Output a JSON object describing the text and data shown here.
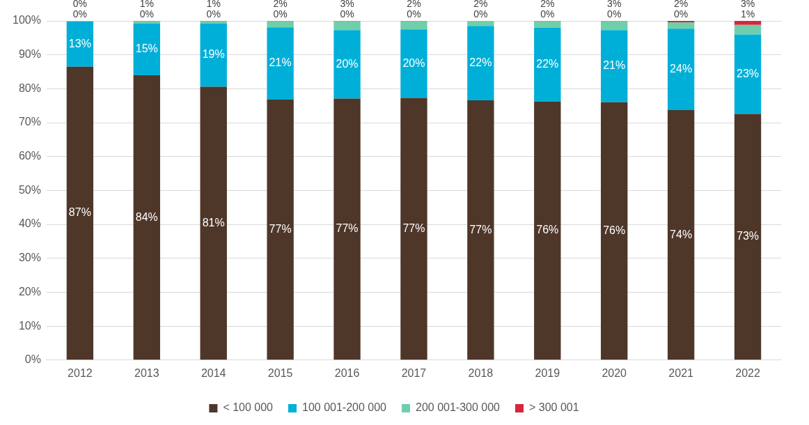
{
  "chart_data": {
    "type": "bar",
    "stacked": true,
    "categories": [
      "2012",
      "2013",
      "2014",
      "2015",
      "2016",
      "2017",
      "2018",
      "2019",
      "2020",
      "2021",
      "2022"
    ],
    "series": [
      {
        "name": "< 100 000",
        "color": "#4e3629",
        "values": [
          86.5,
          84.0,
          80.6,
          76.8,
          77.1,
          77.3,
          76.6,
          76.2,
          76.0,
          73.7,
          72.6
        ],
        "value_labels": [
          "87%",
          "84%",
          "81%",
          "77%",
          "77%",
          "77%",
          "77%",
          "76%",
          "76%",
          "74%",
          "73%"
        ]
      },
      {
        "name": "100 001-200 000",
        "color": "#00afd7",
        "values": [
          13.3,
          15.3,
          18.7,
          21.3,
          20.2,
          20.2,
          21.9,
          21.8,
          21.3,
          24.0,
          23.4
        ],
        "value_labels": [
          "13%",
          "15%",
          "19%",
          "21%",
          "20%",
          "20%",
          "22%",
          "22%",
          "21%",
          "24%",
          "23%"
        ]
      },
      {
        "name": "200 001-300 000",
        "color": "#6fcfaa",
        "values": [
          0.2,
          0.6,
          0.6,
          1.8,
          2.6,
          2.4,
          1.5,
          1.9,
          2.6,
          1.9,
          2.8
        ],
        "value_labels": [
          "0%",
          "1%",
          "1%",
          "2%",
          "3%",
          "2%",
          "2%",
          "2%",
          "3%",
          "2%",
          "3%"
        ]
      },
      {
        "name": "> 300 001",
        "color": "#d7263d",
        "values": [
          0,
          0.1,
          0.1,
          0.1,
          0.1,
          0.1,
          0,
          0.1,
          0.1,
          0.4,
          1.2
        ],
        "value_labels": [
          "0%",
          "0%",
          "0%",
          "0%",
          "0%",
          "0%",
          "0%",
          "0%",
          "0%",
          "0%",
          "1%"
        ]
      }
    ],
    "ylim": [
      0,
      100
    ],
    "yticks": [
      {
        "value": 0,
        "label": "0%"
      },
      {
        "value": 10,
        "label": "10%"
      },
      {
        "value": 20,
        "label": "20%"
      },
      {
        "value": 30,
        "label": "30%"
      },
      {
        "value": 40,
        "label": "40%"
      },
      {
        "value": 50,
        "label": "50%"
      },
      {
        "value": 60,
        "label": "60%"
      },
      {
        "value": 70,
        "label": "70%"
      },
      {
        "value": 80,
        "label": "80%"
      },
      {
        "value": 90,
        "label": "90%"
      },
      {
        "value": 100,
        "label": "100%"
      }
    ],
    "grid": "y",
    "legend": "bottom"
  }
}
